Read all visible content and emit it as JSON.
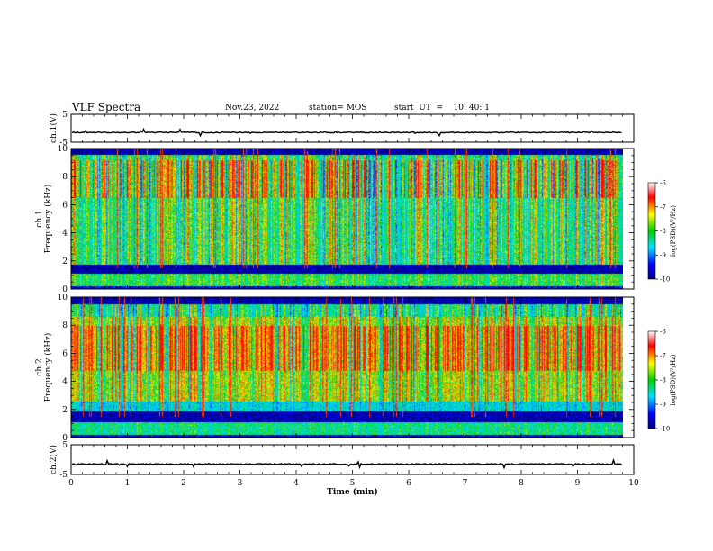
{
  "header": {
    "title": "VLF Spectra",
    "date": "Nov.23, 2022",
    "station": "station= MOS",
    "start": "start  UT  =    10: 40: 1"
  },
  "colors": {
    "axes": "#000000",
    "spectrogram_low": "#00008b",
    "spectrogram_high": "#ff0000"
  },
  "chart_data": [
    {
      "name": "ch1-waveform",
      "type": "line",
      "ylabel": "ch.1(V)",
      "ylim": [
        -5,
        5
      ],
      "yticks": [
        5,
        -5
      ],
      "xlim": [
        0,
        10
      ],
      "baseline": -1.5
    },
    {
      "name": "ch1-spectrogram",
      "type": "heatmap",
      "ylabel_top": "ch.1",
      "ylabel": "Frequency (kHz)",
      "ylim": [
        0,
        10
      ],
      "yticks": [
        "0",
        "2",
        "4",
        "6",
        "8",
        "10"
      ],
      "xlim": [
        0,
        10
      ],
      "data_end_min": 9.8,
      "colorbar": {
        "label": "log(PSD)(V²/Hz)",
        "range": [
          -10,
          -6
        ],
        "ticks": [
          "-6",
          "-7",
          "-8",
          "-9",
          "-10"
        ]
      }
    },
    {
      "name": "ch2-spectrogram",
      "type": "heatmap",
      "ylabel_top": "ch.2",
      "ylabel": "Frequency (kHz)",
      "ylim": [
        0,
        10
      ],
      "yticks": [
        "0",
        "2",
        "4",
        "6",
        "8",
        "10"
      ],
      "xlim": [
        0,
        10
      ],
      "data_end_min": 9.8,
      "colorbar": {
        "label": "log(PSD)(V²/Hz)",
        "range": [
          -10,
          -6
        ],
        "ticks": [
          "-6",
          "-7",
          "-8",
          "-9",
          "-10"
        ]
      }
    },
    {
      "name": "ch2-waveform",
      "type": "line",
      "ylabel": "ch.2(V)",
      "ylim": [
        -5,
        5
      ],
      "yticks": [
        5,
        -5
      ],
      "xlim": [
        0,
        10
      ],
      "baseline": -1.5,
      "xlabel": "Time (min)",
      "xticks": [
        "0",
        "1",
        "2",
        "3",
        "4",
        "5",
        "6",
        "7",
        "8",
        "9",
        "10"
      ]
    }
  ]
}
